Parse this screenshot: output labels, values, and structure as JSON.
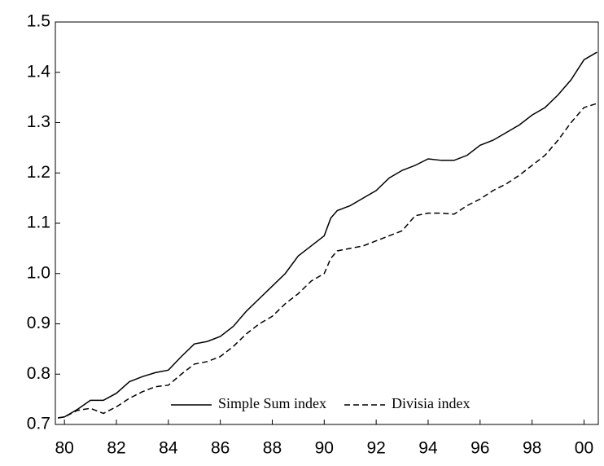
{
  "chart_data": {
    "type": "line",
    "x": [
      1979.75,
      1980,
      1980.5,
      1981,
      1981.5,
      1982,
      1982.5,
      1983,
      1983.5,
      1984,
      1984.5,
      1985,
      1985.5,
      1986,
      1986.5,
      1987,
      1987.5,
      1988,
      1988.5,
      1989,
      1989.5,
      1990,
      1990.25,
      1990.5,
      1991,
      1991.5,
      1992,
      1992.5,
      1993,
      1993.5,
      1994,
      1994.5,
      1995,
      1995.5,
      1996,
      1996.5,
      1997,
      1997.5,
      1998,
      1998.5,
      1999,
      1999.5,
      2000,
      2000.5
    ],
    "series": [
      {
        "name": "Simple Sum index",
        "color": "#000000",
        "dashed": false,
        "values": [
          0.713,
          0.715,
          0.73,
          0.748,
          0.748,
          0.762,
          0.785,
          0.795,
          0.803,
          0.808,
          0.835,
          0.86,
          0.865,
          0.875,
          0.895,
          0.925,
          0.95,
          0.975,
          1.0,
          1.035,
          1.055,
          1.075,
          1.11,
          1.125,
          1.135,
          1.15,
          1.165,
          1.19,
          1.205,
          1.215,
          1.228,
          1.225,
          1.225,
          1.235,
          1.255,
          1.265,
          1.28,
          1.295,
          1.315,
          1.33,
          1.355,
          1.385,
          1.425,
          1.44
        ]
      },
      {
        "name": "Divisia index",
        "color": "#000000",
        "dashed": true,
        "values": [
          0.713,
          0.715,
          0.728,
          0.732,
          0.722,
          0.735,
          0.752,
          0.765,
          0.775,
          0.778,
          0.8,
          0.82,
          0.825,
          0.835,
          0.855,
          0.88,
          0.9,
          0.915,
          0.94,
          0.96,
          0.985,
          1.0,
          1.03,
          1.045,
          1.05,
          1.055,
          1.065,
          1.075,
          1.085,
          1.115,
          1.12,
          1.12,
          1.118,
          1.135,
          1.148,
          1.165,
          1.178,
          1.195,
          1.215,
          1.235,
          1.265,
          1.3,
          1.33,
          1.338
        ]
      }
    ],
    "xlim": [
      1979.65,
      2000.55
    ],
    "xticks": [
      {
        "value": 1980,
        "label": "80"
      },
      {
        "value": 1982,
        "label": "82"
      },
      {
        "value": 1984,
        "label": "84"
      },
      {
        "value": 1986,
        "label": "86"
      },
      {
        "value": 1988,
        "label": "88"
      },
      {
        "value": 1990,
        "label": "90"
      },
      {
        "value": 1992,
        "label": "92"
      },
      {
        "value": 1994,
        "label": "94"
      },
      {
        "value": 1996,
        "label": "96"
      },
      {
        "value": 1998,
        "label": "98"
      },
      {
        "value": 2000,
        "label": "00"
      }
    ],
    "ylim": [
      0.7,
      1.5
    ],
    "yticks": [
      0.7,
      0.8,
      0.9,
      {
        "value": 1,
        "label": "1.0"
      },
      1.1,
      1.2,
      1.3,
      1.4,
      1.5
    ],
    "legend": "lower center",
    "grid": false
  }
}
